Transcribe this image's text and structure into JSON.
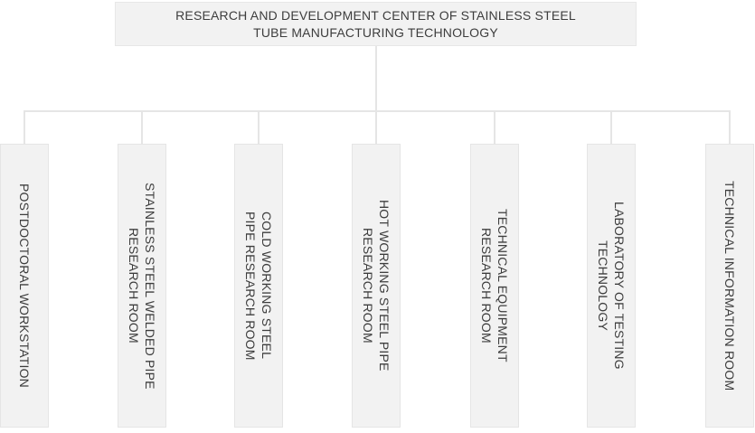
{
  "diagram": {
    "type": "org-chart",
    "root": {
      "label": "RESEARCH AND DEVELOPMENT CENTER OF STAINLESS STEEL\nTUBE MANUFACTURING TECHNOLOGY"
    },
    "departments": [
      {
        "label": "POSTDOCTORAL WORKSTATION"
      },
      {
        "label": "STAINLESS STEEL WELDED PIPE\nRESEARCH ROOM"
      },
      {
        "label": "COLD WORKING STEEL\nPIPE RESEARCH ROOM"
      },
      {
        "label": "HOT WORKING STEEL PIPE\nRESEARCH ROOM"
      },
      {
        "label": "TECHNICAL EQUIPMENT\nRESEARCH ROOM"
      },
      {
        "label": "LABORATORY OF TESTING\nTECHNOLOGY"
      },
      {
        "label": "TECHNICAL INFORMATION ROOM"
      }
    ],
    "colors": {
      "box_fill": "#f2f2f2",
      "box_border": "#e5e5e5",
      "connector_line": "#e5e5e5",
      "text": "#3d3d3d",
      "background": "#ffffff"
    }
  }
}
